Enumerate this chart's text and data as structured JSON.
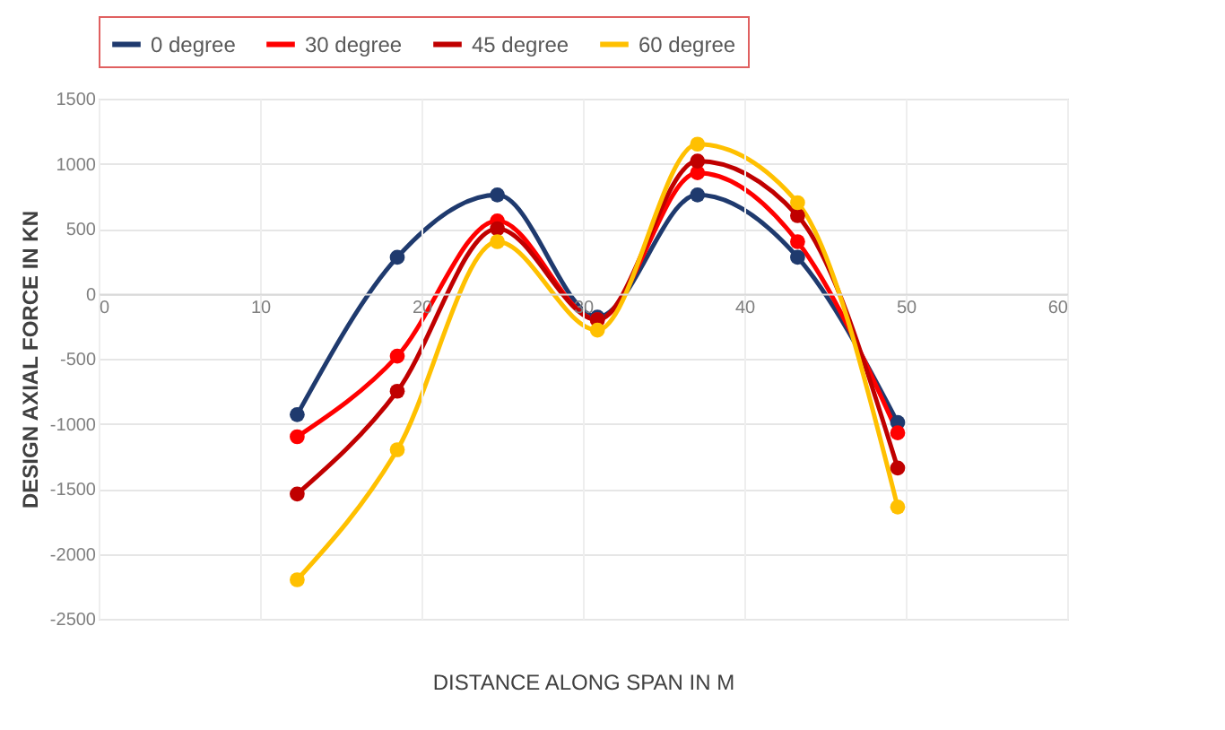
{
  "chart_data": {
    "type": "line",
    "xlabel": "DISTANCE ALONG SPAN IN M",
    "ylabel": "DESIGN AXIAL FORCE IN KN",
    "x": [
      12.3,
      18.5,
      24.7,
      30.9,
      37.1,
      43.3,
      49.5
    ],
    "series": [
      {
        "name": "0 degree",
        "color": "#1f3a6e",
        "values": [
          -930,
          280,
          760,
          -180,
          760,
          280,
          -990
        ]
      },
      {
        "name": "30 degree",
        "color": "#ff0000",
        "values": [
          -1100,
          -480,
          560,
          -200,
          930,
          400,
          -1070
        ]
      },
      {
        "name": "45 degree",
        "color": "#c00000",
        "values": [
          -1540,
          -750,
          500,
          -200,
          1020,
          600,
          -1340
        ]
      },
      {
        "name": "60 degree",
        "color": "#ffc000",
        "values": [
          -2200,
          -1200,
          400,
          -280,
          1150,
          700,
          -1640
        ]
      }
    ],
    "xlim": [
      0,
      60
    ],
    "xticks": [
      0,
      10,
      20,
      30,
      40,
      50,
      60
    ],
    "ylim": [
      -2500,
      1500
    ],
    "yticks": [
      -2500,
      -2000,
      -1500,
      -1000,
      -500,
      0,
      500,
      1000,
      1500
    ],
    "grid": true,
    "legend": "top",
    "marker": "circle",
    "line_style": "solid"
  }
}
